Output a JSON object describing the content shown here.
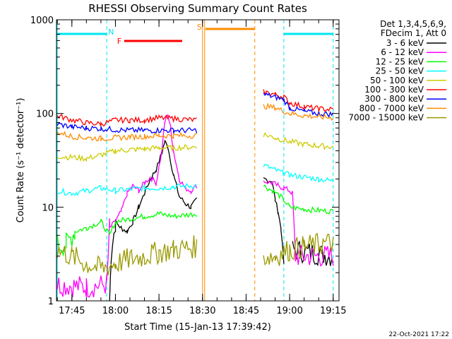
{
  "chart_data": {
    "type": "line",
    "title": "RHESSI Observing Summary Count Rates",
    "xlabel": "Start Time (15-Jan-13 17:39:42)",
    "ylabel": "Count Rate (s⁻¹ detector⁻¹)",
    "yscale": "log",
    "ylim": [
      1,
      1000
    ],
    "xlim": [
      "17:39:42",
      "19:17:00"
    ],
    "x_ticks": [
      "17:45",
      "18:00",
      "18:15",
      "18:30",
      "18:45",
      "19:00",
      "19:15"
    ],
    "y_ticks": [
      "1",
      "10",
      "100",
      "1000"
    ],
    "legend_header": [
      "Det 1,3,4,5,6,9,",
      "FDecim 1, Att 0"
    ],
    "legend_position": "right",
    "footer_date": "22-Oct-2021 17:22",
    "flags": [
      {
        "label": "N",
        "color": "#00e5ee",
        "kind": "night",
        "segments": [
          [
            "17:40",
            "17:57"
          ],
          [
            "18:58",
            "19:15"
          ]
        ],
        "edges": [
          "17:57",
          "18:58",
          "19:15"
        ]
      },
      {
        "label": "F",
        "color": "#ff0000",
        "kind": "flare",
        "segments": [
          [
            "18:03",
            "18:23"
          ]
        ]
      },
      {
        "label": "S",
        "color": "#ff8c00",
        "kind": "saa",
        "segments": [
          [
            "18:31",
            "18:48"
          ]
        ],
        "edges": [
          "18:30",
          "18:48"
        ]
      }
    ],
    "series": [
      {
        "name": "3 - 6 keV",
        "color": "#000000",
        "points": [
          [
            "17:58",
            1
          ],
          [
            "17:58:30",
            3
          ],
          [
            "18:00",
            7
          ],
          [
            "18:02",
            6
          ],
          [
            "18:04",
            5.5
          ],
          [
            "18:06",
            7
          ],
          [
            "18:08",
            10
          ],
          [
            "18:10",
            14
          ],
          [
            "18:12",
            20
          ],
          [
            "18:14",
            25
          ],
          [
            "18:16",
            38
          ],
          [
            "18:17",
            50
          ],
          [
            "18:18",
            45
          ],
          [
            "18:20",
            22
          ],
          [
            "18:22",
            13
          ],
          [
            "18:24",
            11
          ],
          [
            "18:26",
            10
          ],
          [
            "18:28",
            12
          ],
          null,
          [
            "18:51",
            20
          ],
          [
            "18:54",
            19
          ],
          [
            "18:55",
            12
          ],
          [
            "18:56",
            9
          ],
          [
            "18:57",
            6
          ],
          [
            "18:58",
            2.5
          ],
          null,
          [
            "19:01",
            3.5
          ],
          [
            "19:15",
            3
          ]
        ]
      },
      {
        "name": "6 - 12 keV",
        "color": "#ff00ff",
        "points": [
          [
            "17:40",
            1.5
          ],
          [
            "17:50",
            1.4
          ],
          [
            "17:57",
            1.5
          ],
          [
            "17:58",
            6
          ],
          [
            "18:00",
            7
          ],
          [
            "18:02",
            9
          ],
          [
            "18:04",
            14
          ],
          [
            "18:06",
            17
          ],
          [
            "18:08",
            15
          ],
          [
            "18:10",
            18
          ],
          [
            "18:12",
            21
          ],
          [
            "18:14",
            18
          ],
          [
            "18:16",
            40
          ],
          [
            "18:17",
            80
          ],
          [
            "18:18",
            100
          ],
          [
            "18:19",
            70
          ],
          [
            "18:20",
            40
          ],
          [
            "18:22",
            20
          ],
          [
            "18:24",
            16
          ],
          [
            "18:26",
            15
          ],
          [
            "18:28",
            17
          ],
          null,
          [
            "18:51",
            19
          ],
          [
            "18:54",
            18
          ],
          [
            "18:56",
            17
          ],
          [
            "18:58",
            16
          ],
          [
            "19:00",
            15
          ],
          [
            "19:01",
            14
          ],
          [
            "19:02",
            3
          ],
          [
            "19:15",
            3
          ]
        ]
      },
      {
        "name": "12 - 25 keV",
        "color": "#00ff00",
        "points": [
          [
            "17:40",
            4
          ],
          [
            "17:43",
            4
          ],
          [
            "17:46",
            5.5
          ],
          [
            "17:50",
            6
          ],
          [
            "17:55",
            7
          ],
          [
            "17:58",
            5
          ],
          [
            "18:00",
            7
          ],
          [
            "18:05",
            7.5
          ],
          [
            "18:10",
            8
          ],
          [
            "18:15",
            8.5
          ],
          [
            "18:20",
            8
          ],
          [
            "18:28",
            8.5
          ],
          null,
          [
            "18:51",
            17
          ],
          [
            "18:54",
            15
          ],
          [
            "18:57",
            13
          ],
          [
            "19:00",
            10
          ],
          [
            "19:05",
            9.5
          ],
          [
            "19:15",
            9
          ]
        ]
      },
      {
        "name": "25 - 50 keV",
        "color": "#00ffff",
        "points": [
          [
            "17:40",
            15
          ],
          [
            "17:45",
            14
          ],
          [
            "17:50",
            15
          ],
          [
            "17:55",
            16
          ],
          [
            "18:00",
            15
          ],
          [
            "18:05",
            15.5
          ],
          [
            "18:10",
            16
          ],
          [
            "18:15",
            16
          ],
          [
            "18:20",
            16.5
          ],
          [
            "18:28",
            17
          ],
          null,
          [
            "18:51",
            28
          ],
          [
            "18:55",
            25
          ],
          [
            "18:58",
            23
          ],
          [
            "19:00",
            22
          ],
          [
            "19:05",
            21
          ],
          [
            "19:10",
            20
          ],
          [
            "19:15",
            19
          ]
        ]
      },
      {
        "name": "50 - 100 keV",
        "color": "#cccc00",
        "points": [
          [
            "17:40",
            35
          ],
          [
            "17:45",
            34
          ],
          [
            "17:50",
            33
          ],
          [
            "17:55",
            36
          ],
          [
            "18:00",
            40
          ],
          [
            "18:05",
            41
          ],
          [
            "18:10",
            42
          ],
          [
            "18:15",
            43
          ],
          [
            "18:20",
            43
          ],
          [
            "18:28",
            44
          ],
          null,
          [
            "18:51",
            60
          ],
          [
            "18:55",
            55
          ],
          [
            "19:00",
            50
          ],
          [
            "19:05",
            47
          ],
          [
            "19:10",
            45
          ],
          [
            "19:15",
            44
          ]
        ]
      },
      {
        "name": "100 - 300 keV",
        "color": "#ff0000",
        "points": [
          [
            "17:40",
            95
          ],
          [
            "17:45",
            85
          ],
          [
            "17:50",
            80
          ],
          [
            "17:55",
            77
          ],
          [
            "18:00",
            85
          ],
          [
            "18:05",
            85
          ],
          [
            "18:10",
            85
          ],
          [
            "18:15",
            90
          ],
          [
            "18:20",
            88
          ],
          [
            "18:28",
            85
          ],
          null,
          [
            "18:51",
            170
          ],
          [
            "18:55",
            160
          ],
          [
            "18:58",
            150
          ],
          [
            "19:00",
            130
          ],
          [
            "19:05",
            118
          ],
          [
            "19:10",
            112
          ],
          [
            "19:15",
            110
          ]
        ]
      },
      {
        "name": "300 - 800 keV",
        "color": "#0000ff",
        "points": [
          [
            "17:40",
            77
          ],
          [
            "17:45",
            72
          ],
          [
            "17:50",
            70
          ],
          [
            "17:55",
            69
          ],
          [
            "18:00",
            67
          ],
          [
            "18:05",
            66
          ],
          [
            "18:10",
            66
          ],
          [
            "18:15",
            66
          ],
          [
            "18:20",
            66
          ],
          [
            "18:28",
            66
          ],
          null,
          [
            "18:51",
            160
          ],
          [
            "18:55",
            150
          ],
          [
            "18:58",
            140
          ],
          [
            "19:00",
            115
          ],
          [
            "19:05",
            105
          ],
          [
            "19:10",
            100
          ],
          [
            "19:15",
            98
          ]
        ]
      },
      {
        "name": "800 - 7000 keV",
        "color": "#ff8c00",
        "points": [
          [
            "17:40",
            63
          ],
          [
            "17:45",
            57
          ],
          [
            "17:50",
            55
          ],
          [
            "17:55",
            54
          ],
          [
            "18:00",
            55
          ],
          [
            "18:05",
            56
          ],
          [
            "18:10",
            57
          ],
          [
            "18:15",
            58
          ],
          [
            "18:20",
            58
          ],
          [
            "18:28",
            58
          ],
          null,
          [
            "18:51",
            120
          ],
          [
            "18:55",
            115
          ],
          [
            "19:00",
            100
          ],
          [
            "19:05",
            95
          ],
          [
            "19:10",
            92
          ],
          [
            "19:15",
            90
          ]
        ]
      },
      {
        "name": "7000 - 15000 keV",
        "color": "#999900",
        "points": [
          [
            "17:40",
            3.5
          ],
          [
            "17:45",
            3
          ],
          [
            "17:50",
            2.5
          ],
          [
            "17:55",
            2.2
          ],
          [
            "18:00",
            2.5
          ],
          [
            "18:05",
            2.8
          ],
          [
            "18:10",
            3
          ],
          [
            "18:15",
            3.3
          ],
          [
            "18:20",
            3.5
          ],
          [
            "18:28",
            3.8
          ],
          null,
          [
            "18:51",
            3
          ],
          [
            "18:55",
            3
          ],
          [
            "19:00",
            3.5
          ],
          [
            "19:05",
            3.8
          ],
          [
            "19:10",
            4
          ],
          [
            "19:15",
            4.2
          ]
        ]
      }
    ]
  }
}
